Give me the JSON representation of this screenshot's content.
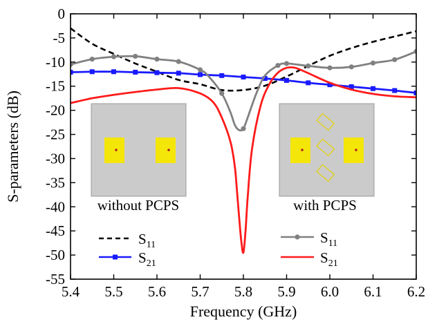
{
  "chart_data": {
    "type": "line",
    "title": "",
    "xlabel": "Frequency (GHz)",
    "ylabel": "S-parameters (dB)",
    "xlim": [
      5.4,
      6.2
    ],
    "ylim": [
      -55,
      0
    ],
    "xticks": [
      5.4,
      5.5,
      5.6,
      5.7,
      5.8,
      5.9,
      6.0,
      6.1,
      6.2
    ],
    "yticks": [
      0,
      -5,
      -10,
      -15,
      -20,
      -25,
      -30,
      -35,
      -40,
      -45,
      -50,
      -55
    ],
    "grid": false,
    "groups": [
      {
        "label": "without PCPS",
        "position": "bottom-left"
      },
      {
        "label": "with PCPS",
        "position": "bottom-right"
      }
    ],
    "series": [
      {
        "name": "S11",
        "group": "without PCPS",
        "style": "dashed",
        "marker": "none",
        "color": "#000000",
        "x": [
          5.4,
          5.45,
          5.5,
          5.55,
          5.6,
          5.65,
          5.7,
          5.75,
          5.8,
          5.85,
          5.9,
          5.95,
          6.0,
          6.05,
          6.1,
          6.15,
          6.2
        ],
        "y": [
          -3,
          -6.2,
          -8.3,
          -10.3,
          -12,
          -13.7,
          -14.6,
          -15.8,
          -15.8,
          -14.9,
          -13,
          -10.8,
          -8.7,
          -7.1,
          -5.8,
          -4.7,
          -3.6
        ]
      },
      {
        "name": "S21",
        "group": "without PCPS",
        "style": "solid",
        "marker": "square",
        "color": "#1a1aff",
        "x": [
          5.4,
          5.45,
          5.5,
          5.55,
          5.6,
          5.65,
          5.7,
          5.75,
          5.8,
          5.85,
          5.9,
          5.95,
          6.0,
          6.05,
          6.1,
          6.15,
          6.2
        ],
        "y": [
          -12.1,
          -12.0,
          -12.0,
          -12.1,
          -12.2,
          -12.3,
          -12.6,
          -12.8,
          -13.1,
          -13.4,
          -13.8,
          -14.3,
          -14.7,
          -15.1,
          -15.5,
          -15.9,
          -16.4
        ]
      },
      {
        "name": "S11",
        "group": "with PCPS",
        "style": "solid",
        "marker": "circle",
        "color": "#808080",
        "x": [
          5.4,
          5.45,
          5.5,
          5.55,
          5.6,
          5.65,
          5.7,
          5.72,
          5.75,
          5.77,
          5.78,
          5.79,
          5.8,
          5.81,
          5.83,
          5.85,
          5.88,
          5.9,
          5.95,
          6.0,
          6.05,
          6.1,
          6.15,
          6.2
        ],
        "y": [
          -10.5,
          -9.4,
          -8.9,
          -8.8,
          -9.4,
          -9.9,
          -11.6,
          -13,
          -16.5,
          -20.4,
          -23,
          -24.1,
          -23.8,
          -21.5,
          -16.5,
          -12.8,
          -10.7,
          -10.3,
          -10.8,
          -11.2,
          -11.0,
          -10.2,
          -9.5,
          -7.8
        ]
      },
      {
        "name": "S21",
        "group": "with PCPS",
        "style": "solid",
        "marker": "none",
        "color": "#ff1a1a",
        "x": [
          5.4,
          5.45,
          5.5,
          5.55,
          5.6,
          5.65,
          5.7,
          5.73,
          5.75,
          5.77,
          5.78,
          5.785,
          5.79,
          5.795,
          5.8,
          5.805,
          5.81,
          5.82,
          5.84,
          5.86,
          5.88,
          5.9,
          5.92,
          5.95,
          6.0,
          6.05,
          6.1,
          6.15,
          6.2
        ],
        "y": [
          -18.5,
          -17.5,
          -16.8,
          -16.2,
          -15.7,
          -15.4,
          -16.5,
          -18.3,
          -21.5,
          -26.5,
          -31.5,
          -36.5,
          -42,
          -47,
          -49.5,
          -45,
          -38,
          -28,
          -19,
          -14.6,
          -12.2,
          -11.2,
          -11.2,
          -12.3,
          -14.3,
          -15.7,
          -16.6,
          -17.1,
          -17.3
        ]
      }
    ]
  },
  "legend": {
    "left_group": {
      "caption": "without PCPS",
      "items": [
        {
          "label": "S",
          "sub": "11"
        },
        {
          "label": "S",
          "sub": "21"
        }
      ]
    },
    "right_group": {
      "caption": "with PCPS",
      "items": [
        {
          "label": "S",
          "sub": "11"
        },
        {
          "label": "S",
          "sub": "21"
        }
      ]
    }
  },
  "colors": {
    "axis": "#000000",
    "inset_background": "#c8c8c8",
    "patch": "#f5e60a",
    "feed_point": "#b02020",
    "pcps_outline": "#e6d200"
  }
}
